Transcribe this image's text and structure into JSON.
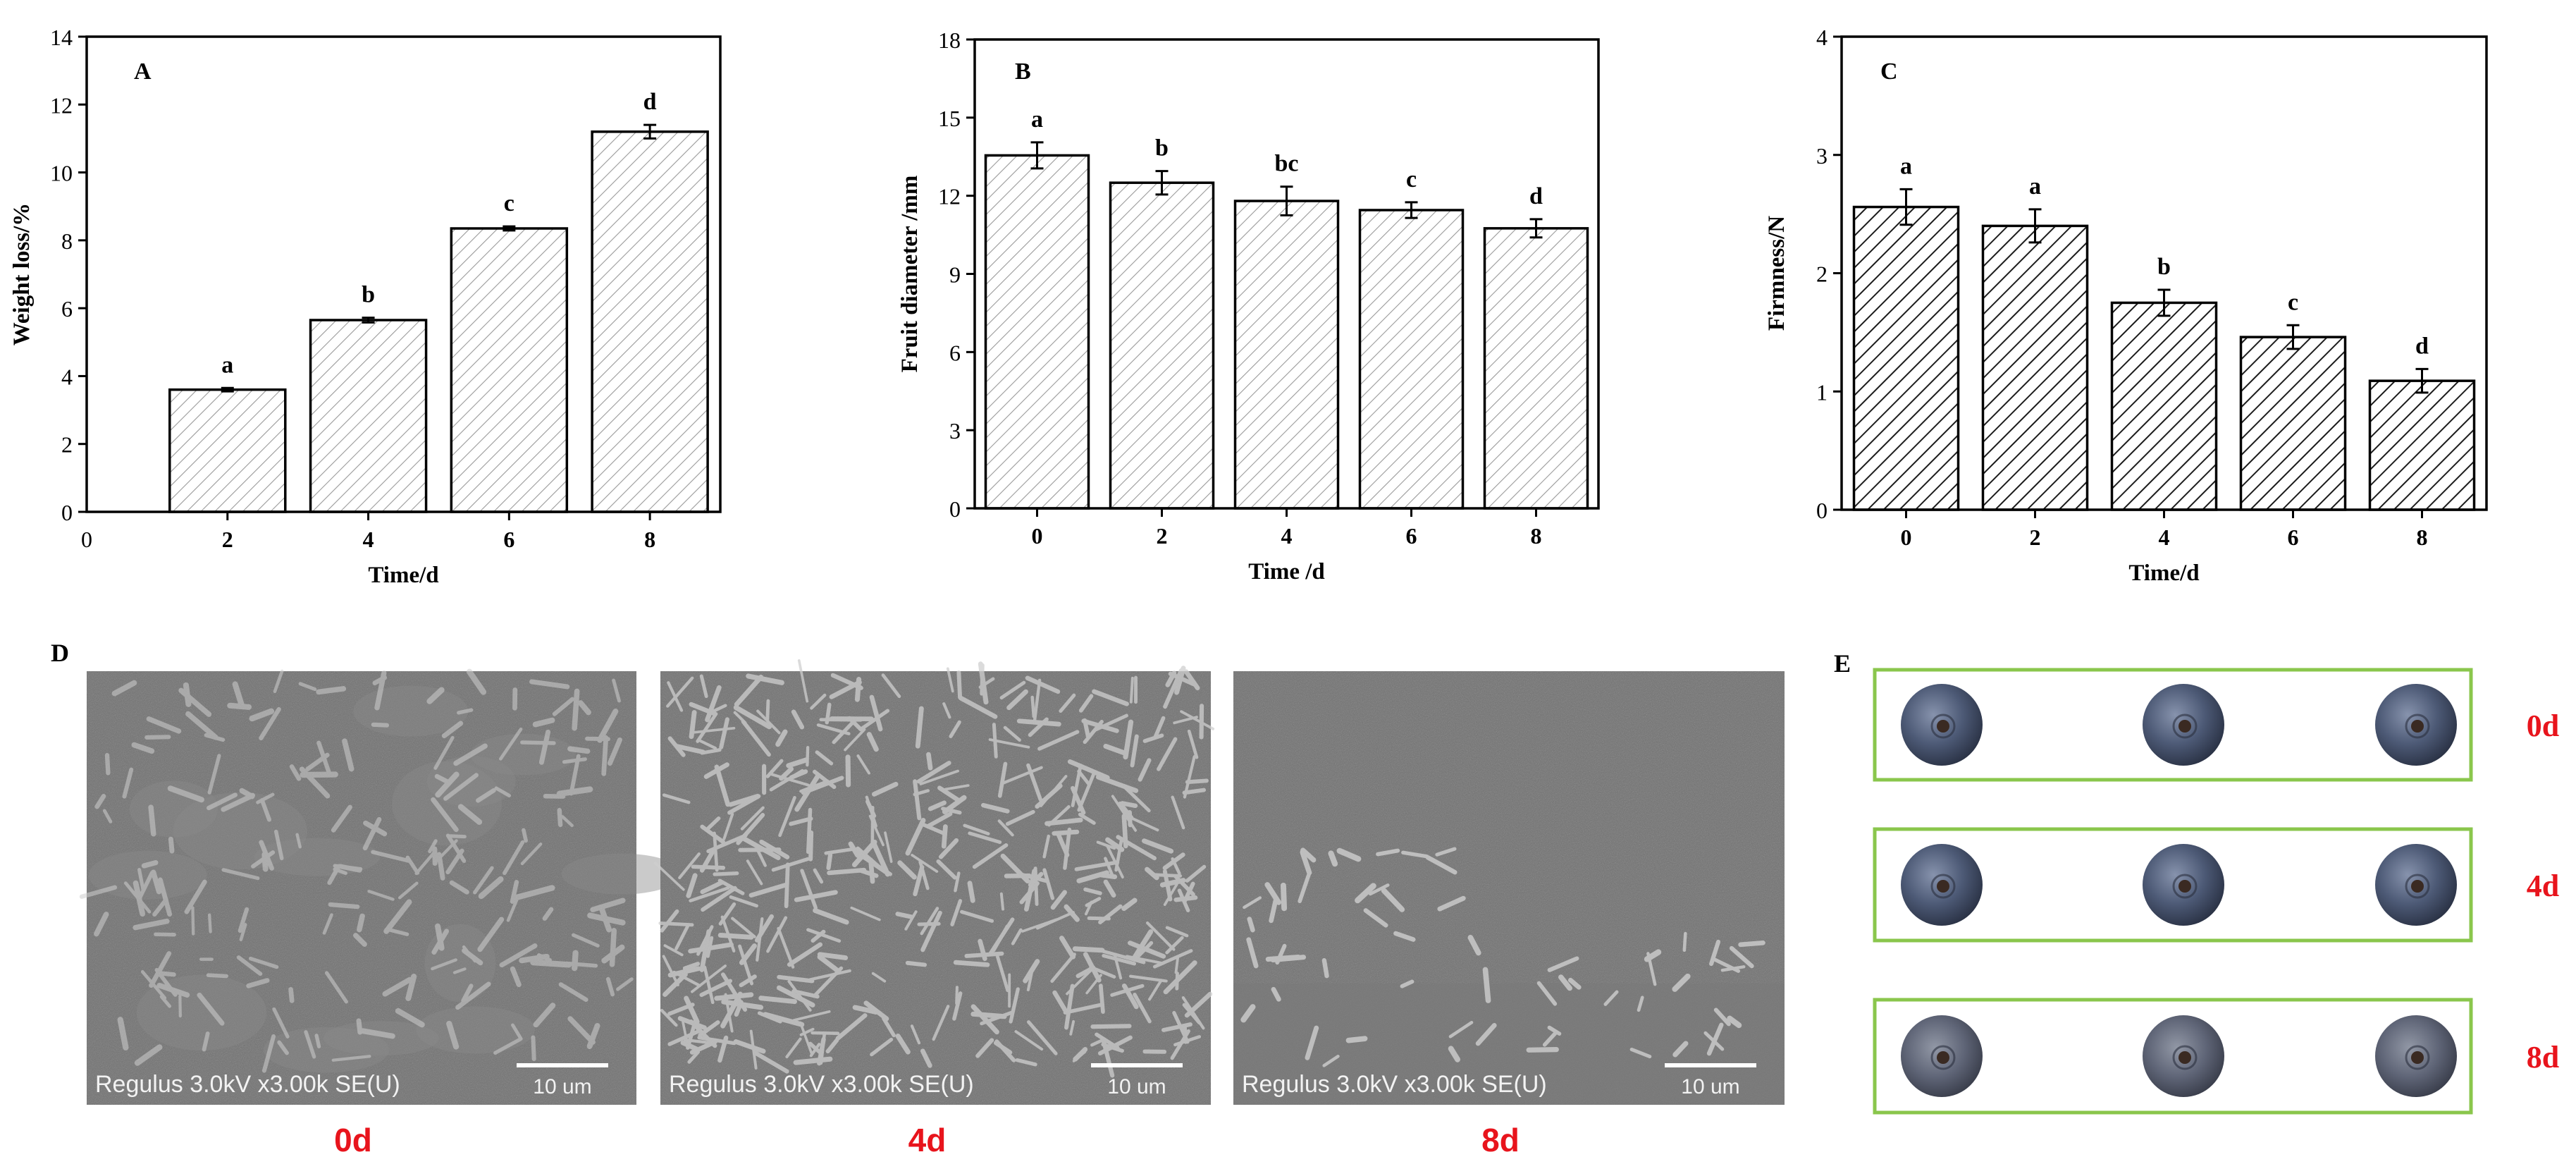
{
  "chart_data": [
    {
      "type": "bar",
      "panel": "A",
      "categories": [
        "2",
        "4",
        "6",
        "8"
      ],
      "values": [
        3.6,
        5.65,
        8.35,
        11.2
      ],
      "errors": [
        0.05,
        0.07,
        0.06,
        0.2
      ],
      "letters": [
        "a",
        "b",
        "c",
        "d"
      ],
      "xlabel": "Time/d",
      "ylabel": "Weight loss/%",
      "ylim": [
        0,
        14
      ],
      "yticks": [
        "0",
        "2",
        "4",
        "6",
        "8",
        "10",
        "12",
        "14"
      ],
      "x_origin_label": "0",
      "pattern": "light-hatch",
      "grid": false
    },
    {
      "type": "bar",
      "panel": "B",
      "categories": [
        "0",
        "2",
        "4",
        "6",
        "8"
      ],
      "values": [
        13.55,
        12.5,
        11.8,
        11.45,
        10.75
      ],
      "errors": [
        0.5,
        0.45,
        0.55,
        0.3,
        0.35
      ],
      "letters": [
        "a",
        "b",
        "bc",
        "c",
        "d"
      ],
      "xlabel": "Time /d",
      "ylabel": "Fruit diameter /mm",
      "ylim": [
        0,
        18
      ],
      "yticks": [
        "0",
        "3",
        "6",
        "9",
        "12",
        "15",
        "18"
      ],
      "pattern": "light-hatch",
      "grid": false
    },
    {
      "type": "bar",
      "panel": "C",
      "categories": [
        "0",
        "2",
        "4",
        "6",
        "8"
      ],
      "values": [
        2.56,
        2.4,
        1.75,
        1.46,
        1.09
      ],
      "errors": [
        0.15,
        0.14,
        0.11,
        0.1,
        0.1
      ],
      "letters": [
        "a",
        "a",
        "b",
        "c",
        "d"
      ],
      "xlabel": "Time/d",
      "ylabel": "Firmness/N",
      "ylim": [
        0,
        4
      ],
      "yticks": [
        "0",
        "1",
        "2",
        "3",
        "4"
      ],
      "pattern": "dense-hatch",
      "grid": false
    }
  ],
  "panel_d": {
    "label": "D",
    "images": [
      {
        "caption": "0d",
        "info": "Regulus 3.0kV x3.00k SE(U)",
        "scale": "10 um",
        "variant": "waxy"
      },
      {
        "caption": "4d",
        "info": "Regulus 3.0kV x3.00k SE(U)",
        "scale": "10 um",
        "variant": "dense"
      },
      {
        "caption": "8d",
        "info": "Regulus 3.0kV x3.00k SE(U)",
        "scale": "10 um",
        "variant": "sparse"
      }
    ]
  },
  "panel_e": {
    "label": "E",
    "rows": [
      {
        "label": "0d",
        "count": 3
      },
      {
        "label": "4d",
        "count": 3
      },
      {
        "label": "8d",
        "count": 3
      }
    ]
  },
  "colors": {
    "axis": "#000000",
    "caption_red": "#e8141c",
    "box_green": "#8ac64c",
    "sem_bg": "#6f6f6f",
    "berry": "#4a5670"
  }
}
